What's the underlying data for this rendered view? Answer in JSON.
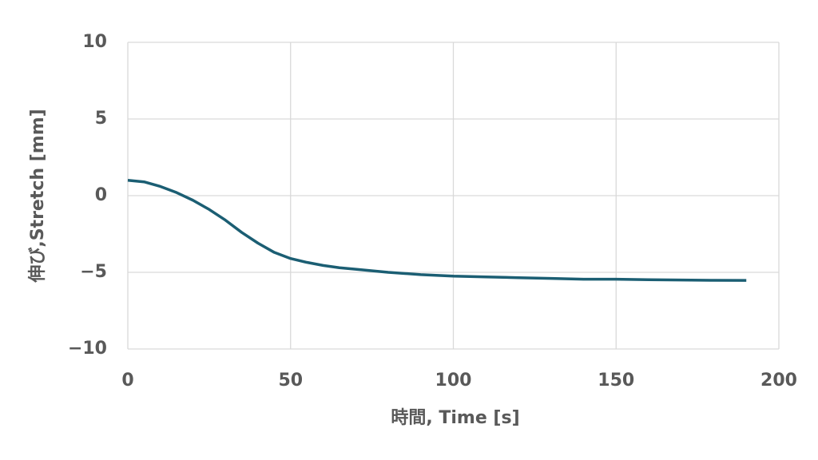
{
  "chart_data": {
    "type": "line",
    "x_label": "時間, Time [s]",
    "y_label": "伸び,Stretch [mm]",
    "x": [
      0,
      5,
      10,
      15,
      20,
      25,
      30,
      35,
      40,
      45,
      50,
      55,
      60,
      65,
      70,
      80,
      90,
      100,
      110,
      120,
      130,
      140,
      150,
      160,
      170,
      180,
      190
    ],
    "series": [
      {
        "name": "Stretch",
        "color": "#1b5e73",
        "values": [
          1.0,
          0.9,
          0.6,
          0.2,
          -0.3,
          -0.9,
          -1.6,
          -2.4,
          -3.1,
          -3.7,
          -4.1,
          -4.35,
          -4.55,
          -4.7,
          -4.8,
          -5.0,
          -5.15,
          -5.25,
          -5.3,
          -5.35,
          -5.4,
          -5.45,
          -5.45,
          -5.48,
          -5.5,
          -5.52,
          -5.53
        ]
      }
    ],
    "xlim": [
      0,
      200
    ],
    "xticks": [
      0,
      50,
      100,
      150,
      200
    ],
    "ylim": [
      -10,
      10
    ],
    "yticks": [
      {
        "value": -10,
        "label": "−10"
      },
      {
        "value": -5,
        "label": "−5"
      },
      0,
      5,
      10
    ],
    "grid": true
  }
}
